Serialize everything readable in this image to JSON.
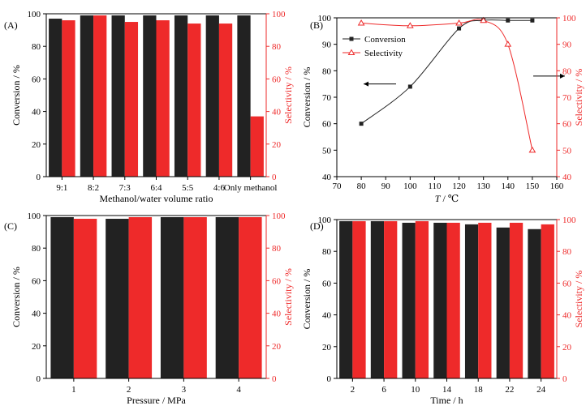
{
  "colors": {
    "conversion": "#222222",
    "selectivity": "#ee2a2a",
    "axis": "#000000",
    "right_axis": "#ee2a2a"
  },
  "chart_data": [
    {
      "panel": "(A)",
      "type": "bar",
      "categories": [
        "9:1",
        "8:2",
        "7:3",
        "6:4",
        "5:5",
        "4:6",
        "Only methanol"
      ],
      "series": [
        {
          "name": "Conversion",
          "axis": "left",
          "values": [
            97,
            99,
            99,
            99,
            99,
            99,
            99
          ]
        },
        {
          "name": "Selectivity",
          "axis": "right",
          "values": [
            96,
            99,
            95,
            96,
            94,
            94,
            37
          ]
        }
      ],
      "xlabel": "Methanol/water volume ratio",
      "ylabel": "Conversion / %",
      "y2label": "Selectivity / %",
      "ylim": [
        0,
        100
      ],
      "y2lim": [
        0,
        100
      ],
      "yticks": [
        0,
        20,
        40,
        60,
        80,
        100
      ],
      "legend": "none"
    },
    {
      "panel": "(B)",
      "type": "line",
      "series": [
        {
          "name": "Conversion",
          "axis": "left",
          "marker": "square",
          "x": [
            80,
            100,
            120,
            130,
            140,
            150
          ],
          "y": [
            60,
            74,
            96,
            99,
            99,
            99
          ]
        },
        {
          "name": "Selectivity",
          "axis": "right",
          "marker": "triangle-open",
          "x": [
            80,
            100,
            120,
            130,
            140,
            150
          ],
          "y": [
            98,
            97,
            98,
            99,
            90,
            50
          ]
        }
      ],
      "xlabel_italic": "T",
      "xlabel_unit": " / ℃",
      "ylabel": "Conversion / %",
      "y2label": "Selectivity / %",
      "xlim": [
        70,
        160
      ],
      "ylim": [
        40,
        100
      ],
      "y2lim": [
        40,
        100
      ],
      "xticks": [
        70,
        80,
        90,
        100,
        110,
        120,
        130,
        140,
        150,
        160
      ],
      "yticks": [
        40,
        50,
        60,
        70,
        80,
        90,
        100
      ],
      "legend": "top-left"
    },
    {
      "panel": "(C)",
      "type": "bar",
      "categories": [
        "1",
        "2",
        "3",
        "4"
      ],
      "series": [
        {
          "name": "Conversion",
          "axis": "left",
          "values": [
            99,
            98,
            99,
            99
          ]
        },
        {
          "name": "Selectivity",
          "axis": "right",
          "values": [
            98,
            99,
            99,
            99
          ]
        }
      ],
      "xlabel": "Pressure / MPa",
      "ylabel": "Conversion / %",
      "y2label": "Selectivity / %",
      "ylim": [
        0,
        100
      ],
      "y2lim": [
        0,
        100
      ],
      "yticks": [
        0,
        20,
        40,
        60,
        80,
        100
      ],
      "legend": "none"
    },
    {
      "panel": "(D)",
      "type": "bar",
      "categories": [
        "2",
        "6",
        "10",
        "14",
        "18",
        "22",
        "24"
      ],
      "series": [
        {
          "name": "Conversion",
          "axis": "left",
          "values": [
            99,
            99,
            98,
            98,
            97,
            95,
            94
          ]
        },
        {
          "name": "Selectivity",
          "axis": "right",
          "values": [
            99,
            99,
            99,
            98,
            98,
            98,
            97
          ]
        }
      ],
      "xlabel": "Time / h",
      "ylabel": "Conversion / %",
      "y2label": "Selectivity / %",
      "ylim": [
        0,
        100
      ],
      "y2lim": [
        0,
        100
      ],
      "yticks": [
        0,
        20,
        40,
        60,
        80,
        100
      ],
      "legend": "none"
    }
  ]
}
